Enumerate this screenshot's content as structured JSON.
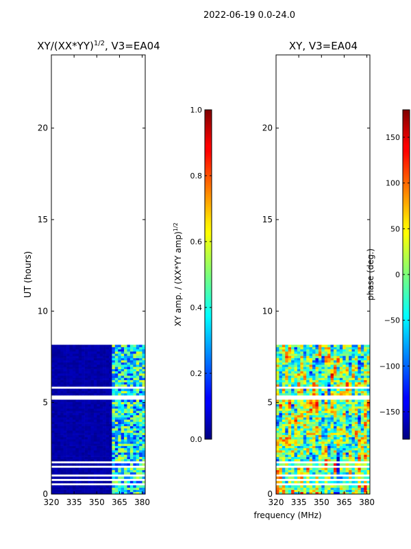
{
  "figure_title": "2022-06-19 0.0-24.0",
  "shared_xlabel": "frequency (MHz)",
  "chart_data": [
    {
      "type": "heatmap",
      "name": "amplitude-ratio",
      "title_main": "XY/(XX*YY)",
      "title_sup": "1/2",
      "title_rest": ", V3=EA04",
      "ylabel": "UT (hours)",
      "xlim": [
        320,
        382
      ],
      "ylim": [
        0,
        24
      ],
      "xticks": [
        320,
        335,
        350,
        365,
        380
      ],
      "yticks": [
        0,
        5,
        10,
        15,
        20
      ],
      "data_ut_range": [
        0,
        8.1
      ],
      "bright_freq_range": [
        360,
        382
      ],
      "colorbar": {
        "label_main": "XY amp. / (XX*YY amp)",
        "label_sup": "1/2",
        "range": [
          0.0,
          1.0
        ],
        "ticks": [
          "0.0",
          "0.2",
          "0.4",
          "0.6",
          "0.8",
          "1.0"
        ],
        "tick_values": [
          0.0,
          0.2,
          0.4,
          0.6,
          0.8,
          1.0
        ]
      }
    },
    {
      "type": "heatmap",
      "name": "phase",
      "title": "XY, V3=EA04",
      "xlim": [
        320,
        382
      ],
      "ylim": [
        0,
        24
      ],
      "xticks": [
        320,
        335,
        350,
        365,
        380
      ],
      "yticks": [
        0,
        5,
        10,
        15,
        20
      ],
      "data_ut_range": [
        0,
        8.1
      ],
      "colorbar": {
        "label": "phase (deg.)",
        "range": [
          -180,
          180
        ],
        "ticks": [
          "−150",
          "−100",
          "−50",
          "0",
          "50",
          "100",
          "150"
        ],
        "tick_values": [
          -150,
          -100,
          -50,
          0,
          50,
          100,
          150
        ]
      }
    }
  ]
}
